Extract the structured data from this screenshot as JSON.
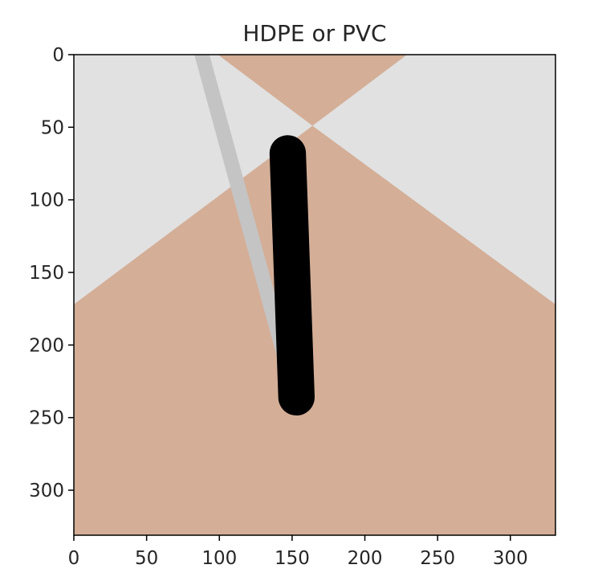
{
  "chart_data": {
    "type": "image",
    "title": "HDPE or PVC",
    "x_ticks": [
      0,
      50,
      100,
      150,
      200,
      250,
      300
    ],
    "y_ticks": [
      0,
      50,
      100,
      150,
      200,
      250,
      300
    ],
    "xlim": [
      0,
      331
    ],
    "ylim": [
      331,
      0
    ],
    "y_inverted": true,
    "grid": false,
    "colors": {
      "background_region": "#e1e1e1",
      "tan_region": "#d4ae97",
      "gray_stroke": "#c4c4c4",
      "black_stroke": "#000000",
      "axis": "#000000",
      "text": "#262626"
    },
    "regions": [
      {
        "name": "tan-top-triangle",
        "points": [
          [
            99,
            0
          ],
          [
            229,
            0
          ],
          [
            164,
            49
          ]
        ]
      },
      {
        "name": "tan-bottom-area",
        "points": [
          [
            0,
            172
          ],
          [
            164,
            49
          ],
          [
            331,
            172
          ],
          [
            331,
            331
          ],
          [
            0,
            331
          ]
        ]
      }
    ],
    "strokes": [
      {
        "name": "gray-stroke",
        "color": "#c4c4c4",
        "width_data": 10,
        "points": [
          [
            88,
            0
          ],
          [
            148,
            220
          ]
        ]
      },
      {
        "name": "black-stroke",
        "color": "#000000",
        "width_data": 25,
        "points": [
          [
            147,
            68
          ],
          [
            153,
            236
          ]
        ]
      }
    ]
  }
}
